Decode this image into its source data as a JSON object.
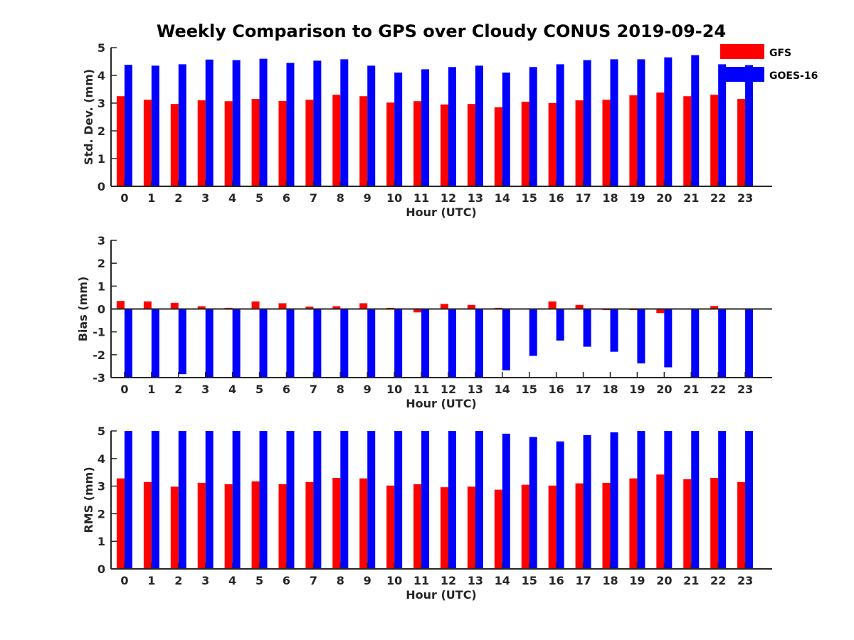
{
  "title": "Weekly Comparison to GPS over Cloudy CONUS 2019-09-24",
  "colors": {
    "GFS": "#ff0000",
    "GOES-16": "#0000ff",
    "axis": "#262626"
  },
  "legend": {
    "placement": "top-right",
    "entries": [
      "GFS",
      "GOES-16"
    ]
  },
  "chart_data": [
    {
      "type": "bar",
      "title": "Weekly Comparison to GPS over Cloudy CONUS 2019-09-24",
      "xlabel": "Hour (UTC)",
      "ylabel": "Std. Dev. (mm)",
      "ylim": [
        0,
        5
      ],
      "yticks": [
        0,
        1,
        2,
        3,
        4,
        5
      ],
      "categories": [
        "0",
        "1",
        "2",
        "3",
        "4",
        "5",
        "6",
        "7",
        "8",
        "9",
        "10",
        "11",
        "12",
        "13",
        "14",
        "15",
        "16",
        "17",
        "18",
        "19",
        "20",
        "21",
        "22",
        "23"
      ],
      "series": [
        {
          "name": "GFS",
          "values": [
            3.25,
            3.12,
            2.97,
            3.1,
            3.07,
            3.15,
            3.08,
            3.12,
            3.3,
            3.25,
            3.02,
            3.07,
            2.95,
            2.97,
            2.85,
            3.05,
            3.0,
            3.1,
            3.12,
            3.28,
            3.38,
            3.25,
            3.3,
            3.15
          ]
        },
        {
          "name": "GOES-16",
          "values": [
            4.38,
            4.35,
            4.4,
            4.57,
            4.55,
            4.6,
            4.45,
            4.53,
            4.58,
            4.35,
            4.1,
            4.22,
            4.3,
            4.35,
            4.1,
            4.3,
            4.4,
            4.55,
            4.58,
            4.58,
            4.65,
            4.73,
            4.4,
            4.37
          ]
        }
      ]
    },
    {
      "type": "bar",
      "xlabel": "Hour (UTC)",
      "ylabel": "Bias (mm)",
      "ylim": [
        -3,
        3
      ],
      "yticks": [
        -3,
        -2,
        -1,
        0,
        1,
        2,
        3
      ],
      "categories": [
        "0",
        "1",
        "2",
        "3",
        "4",
        "5",
        "6",
        "7",
        "8",
        "9",
        "10",
        "11",
        "12",
        "13",
        "14",
        "15",
        "16",
        "17",
        "18",
        "19",
        "20",
        "21",
        "22",
        "23"
      ],
      "series": [
        {
          "name": "GFS",
          "values": [
            0.35,
            0.33,
            0.27,
            0.12,
            0.05,
            0.33,
            0.25,
            0.1,
            0.12,
            0.25,
            0.05,
            -0.15,
            0.22,
            0.18,
            0.05,
            0.0,
            0.33,
            0.18,
            -0.05,
            -0.05,
            -0.18,
            0.03,
            0.13,
            0.03
          ]
        },
        {
          "name": "GOES-16",
          "values": [
            -3.0,
            -3.0,
            -2.85,
            -3.0,
            -3.0,
            -3.0,
            -3.0,
            -3.0,
            -3.0,
            -3.0,
            -3.0,
            -3.0,
            -3.0,
            -3.0,
            -2.68,
            -2.05,
            -1.38,
            -1.65,
            -1.87,
            -2.38,
            -2.55,
            -3.0,
            -3.0,
            -3.0
          ]
        }
      ]
    },
    {
      "type": "bar",
      "xlabel": "Hour (UTC)",
      "ylabel": "RMS (mm)",
      "ylim": [
        0,
        5
      ],
      "yticks": [
        0,
        1,
        2,
        3,
        4,
        5
      ],
      "categories": [
        "0",
        "1",
        "2",
        "3",
        "4",
        "5",
        "6",
        "7",
        "8",
        "9",
        "10",
        "11",
        "12",
        "13",
        "14",
        "15",
        "16",
        "17",
        "18",
        "19",
        "20",
        "21",
        "22",
        "23"
      ],
      "series": [
        {
          "name": "GFS",
          "values": [
            3.28,
            3.15,
            2.98,
            3.12,
            3.07,
            3.17,
            3.07,
            3.15,
            3.3,
            3.28,
            3.02,
            3.07,
            2.96,
            2.98,
            2.87,
            3.05,
            3.02,
            3.1,
            3.12,
            3.28,
            3.42,
            3.25,
            3.3,
            3.15
          ]
        },
        {
          "name": "GOES-16",
          "values": [
            5.0,
            5.0,
            5.0,
            5.0,
            5.0,
            5.0,
            5.0,
            5.0,
            5.0,
            5.0,
            5.0,
            5.0,
            5.0,
            5.0,
            4.9,
            4.78,
            4.62,
            4.85,
            4.95,
            5.0,
            5.0,
            5.0,
            5.0,
            5.0
          ]
        }
      ]
    }
  ]
}
